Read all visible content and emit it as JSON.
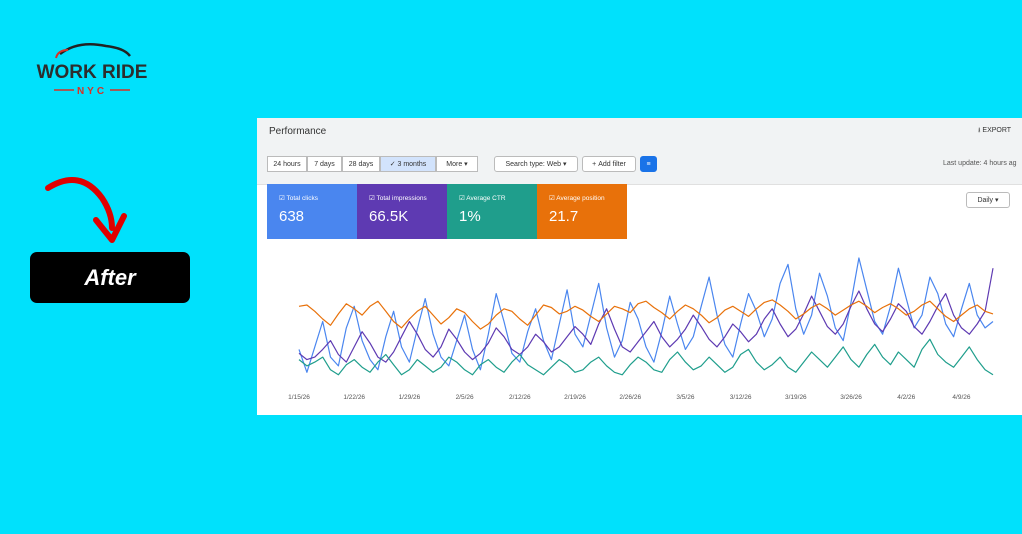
{
  "logo": {
    "brand": "WORK RIDE",
    "city": "NYC"
  },
  "badge": "After",
  "panel": {
    "title": "Performance",
    "export": "EXPORT",
    "ranges": [
      "24 hours",
      "7 days",
      "28 days",
      "3 months",
      "More"
    ],
    "search_type": "Search type: Web",
    "add_filter": "Add filter",
    "last_update": "Last update: 4 hours ag",
    "granularity": "Daily"
  },
  "chart_data": {
    "type": "line",
    "categories": [
      "1/15/26",
      null,
      null,
      null,
      null,
      null,
      null,
      "1/22/26",
      null,
      null,
      null,
      null,
      null,
      null,
      "1/29/26",
      null,
      null,
      null,
      null,
      null,
      null,
      "2/5/26",
      null,
      null,
      null,
      null,
      null,
      null,
      "2/12/26",
      null,
      null,
      null,
      null,
      null,
      null,
      "2/19/26",
      null,
      null,
      null,
      null,
      null,
      null,
      "2/26/26",
      null,
      null,
      null,
      null,
      null,
      null,
      "3/5/26",
      null,
      null,
      null,
      null,
      null,
      null,
      "3/12/26",
      null,
      null,
      null,
      null,
      null,
      null,
      "3/19/26",
      null,
      null,
      null,
      null,
      null,
      null,
      "3/26/26",
      null,
      null,
      null,
      null,
      null,
      null,
      "4/2/26",
      null,
      null,
      null,
      null,
      null,
      null,
      "4/9/26",
      null,
      null,
      null,
      null
    ],
    "ylim": [
      0,
      100
    ],
    "series": [
      {
        "name": "Total clicks",
        "total": "638",
        "color": "#4a86ef",
        "values": [
          28,
          10,
          30,
          50,
          22,
          15,
          45,
          62,
          35,
          20,
          12,
          38,
          58,
          30,
          18,
          44,
          68,
          40,
          22,
          15,
          35,
          55,
          28,
          12,
          40,
          72,
          50,
          25,
          18,
          42,
          60,
          35,
          20,
          48,
          75,
          40,
          30,
          55,
          80,
          45,
          22,
          35,
          65,
          52,
          30,
          18,
          42,
          70,
          48,
          28,
          38,
          62,
          85,
          55,
          32,
          22,
          48,
          72,
          58,
          38,
          52,
          80,
          95,
          60,
          40,
          55,
          88,
          70,
          45,
          35,
          65,
          100,
          75,
          50,
          40,
          62,
          92,
          68,
          45,
          55,
          85,
          72,
          48,
          38,
          60,
          80,
          55,
          45,
          50
        ]
      },
      {
        "name": "Total impressions",
        "total": "66.5K",
        "color": "#5e3ab2",
        "values": [
          25,
          20,
          22,
          28,
          35,
          24,
          18,
          30,
          42,
          33,
          22,
          18,
          26,
          38,
          50,
          40,
          28,
          22,
          30,
          44,
          36,
          26,
          20,
          25,
          33,
          45,
          38,
          28,
          24,
          30,
          40,
          34,
          26,
          30,
          38,
          46,
          40,
          32,
          48,
          60,
          44,
          30,
          26,
          34,
          42,
          50,
          38,
          30,
          36,
          44,
          55,
          46,
          36,
          30,
          38,
          48,
          42,
          34,
          40,
          52,
          60,
          48,
          38,
          44,
          56,
          70,
          58,
          46,
          40,
          48,
          62,
          74,
          60,
          48,
          42,
          52,
          64,
          58,
          46,
          40,
          50,
          62,
          72,
          55,
          45,
          40,
          48,
          58,
          92
        ]
      },
      {
        "name": "Average CTR",
        "total": "1%",
        "color": "#1f9e8c",
        "values": [
          20,
          15,
          18,
          22,
          12,
          8,
          16,
          20,
          14,
          10,
          18,
          24,
          16,
          8,
          12,
          20,
          15,
          10,
          14,
          22,
          18,
          12,
          8,
          16,
          20,
          14,
          10,
          18,
          24,
          16,
          12,
          8,
          14,
          20,
          16,
          10,
          12,
          18,
          22,
          15,
          10,
          8,
          16,
          22,
          18,
          12,
          10,
          20,
          26,
          18,
          12,
          15,
          22,
          16,
          10,
          14,
          24,
          28,
          18,
          12,
          16,
          22,
          14,
          10,
          18,
          26,
          20,
          14,
          22,
          30,
          20,
          14,
          24,
          32,
          22,
          16,
          26,
          20,
          14,
          28,
          36,
          24,
          18,
          14,
          22,
          30,
          20,
          12,
          8
        ]
      },
      {
        "name": "Average position",
        "total": "21.7",
        "color": "#e8710a",
        "values": [
          62,
          63,
          58,
          52,
          47,
          56,
          64,
          60,
          55,
          62,
          66,
          58,
          50,
          45,
          52,
          58,
          62,
          55,
          48,
          53,
          60,
          57,
          50,
          44,
          48,
          55,
          60,
          58,
          52,
          47,
          55,
          63,
          61,
          56,
          58,
          62,
          59,
          54,
          50,
          56,
          62,
          60,
          57,
          64,
          66,
          61,
          57,
          52,
          58,
          63,
          60,
          55,
          49,
          53,
          59,
          62,
          58,
          54,
          60,
          65,
          67,
          63,
          58,
          52,
          56,
          61,
          64,
          60,
          55,
          59,
          63,
          66,
          62,
          57,
          61,
          64,
          60,
          55,
          58,
          63,
          66,
          60,
          54,
          50,
          55,
          60,
          63,
          58,
          56
        ]
      }
    ]
  }
}
